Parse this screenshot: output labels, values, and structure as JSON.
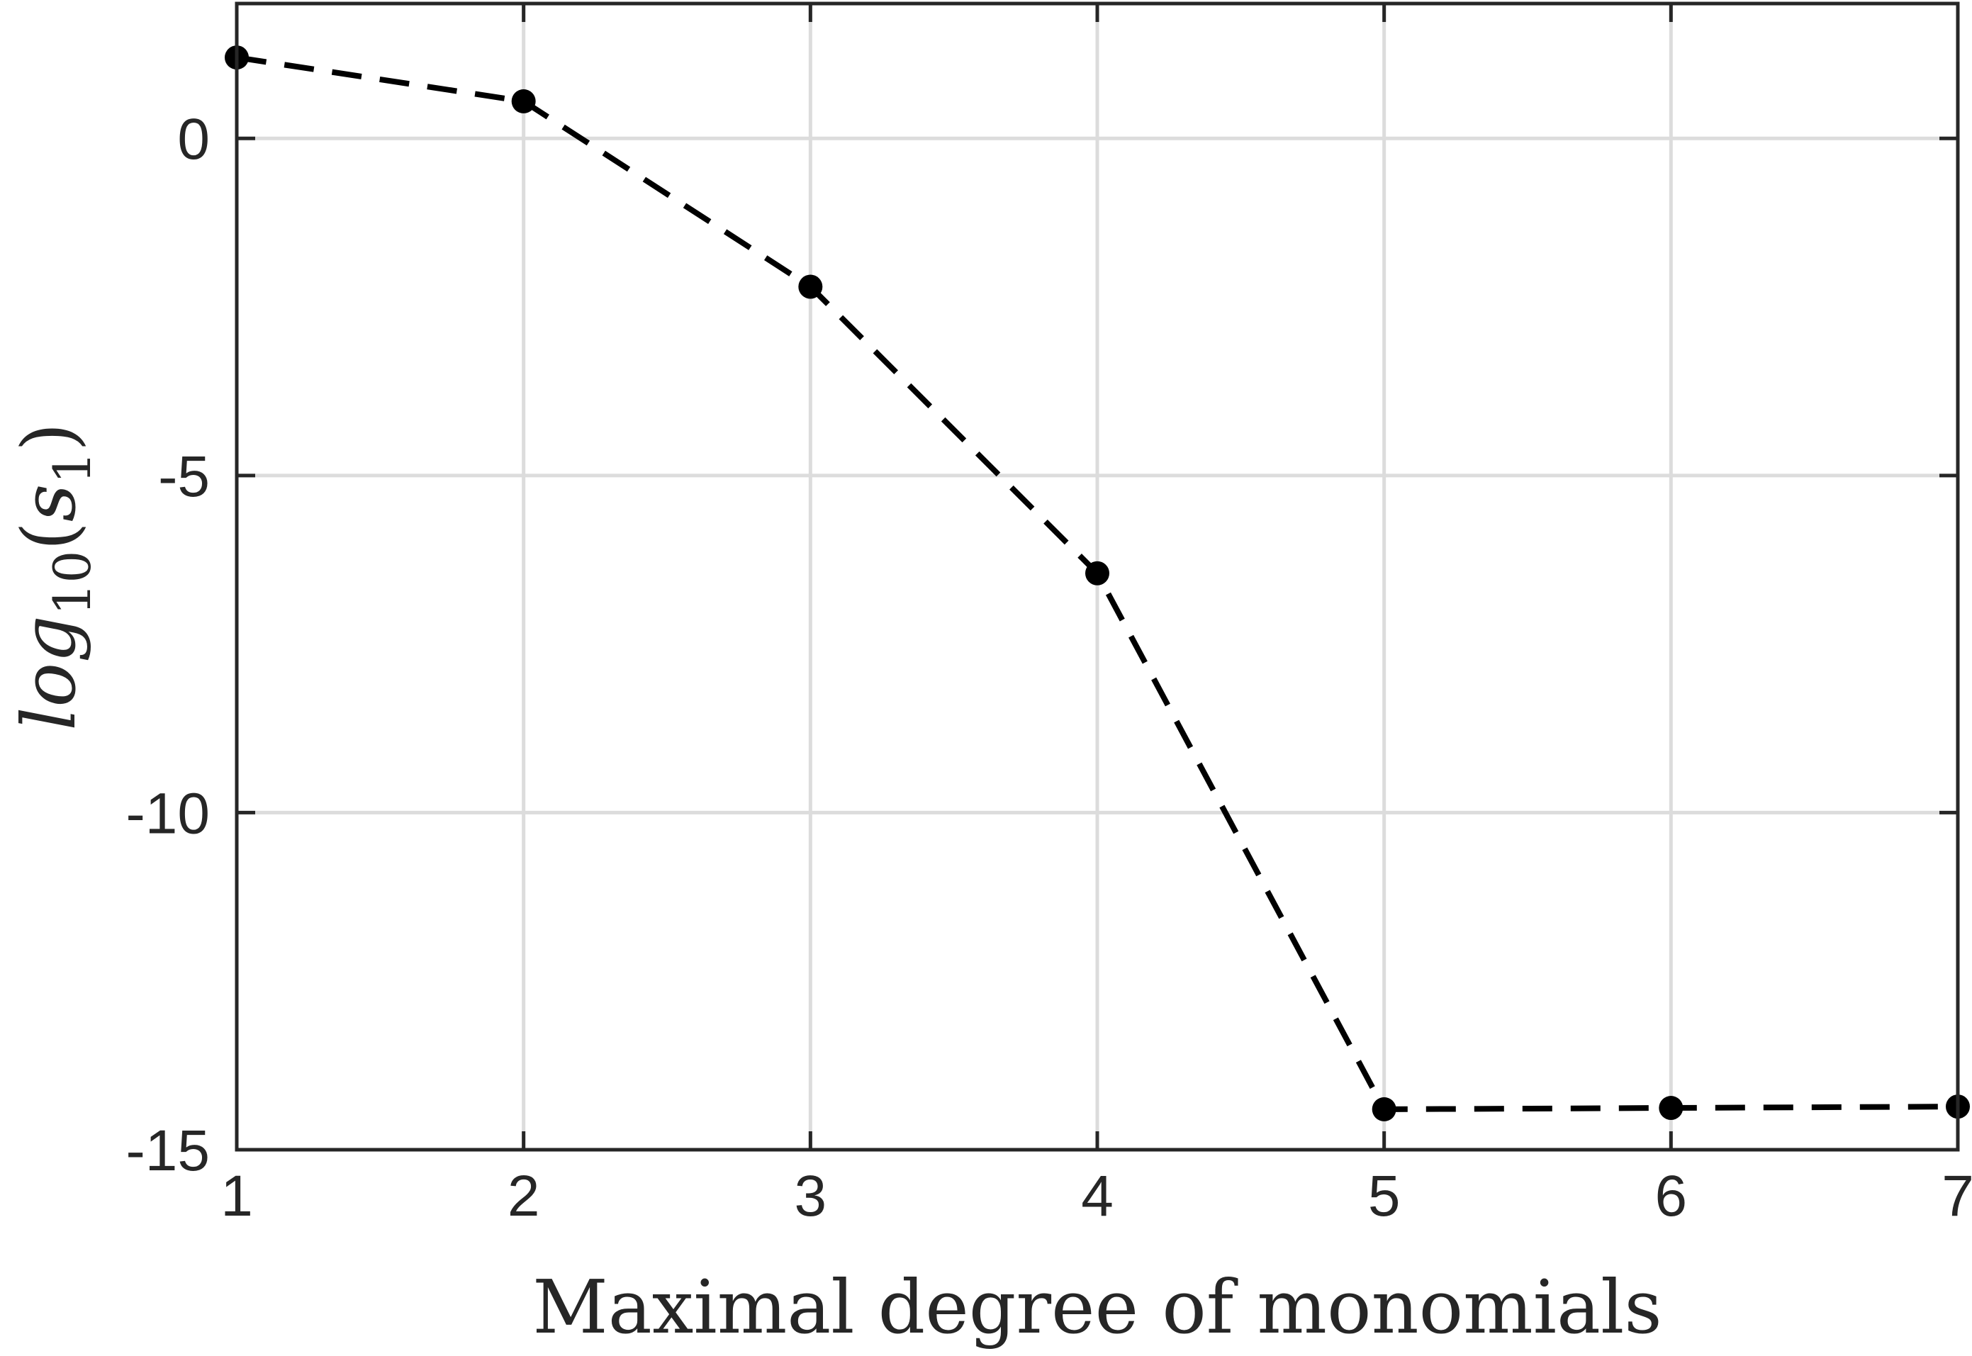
{
  "chart_data": {
    "type": "line",
    "title": "",
    "xlabel": "Maximal degree of monomials",
    "ylabel": {
      "base": "log",
      "base_subscript": "10",
      "open_paren": "(",
      "var": "s",
      "var_subscript": "1",
      "close_paren": ")"
    },
    "xlim": [
      1,
      7
    ],
    "ylim": [
      -15,
      2
    ],
    "xticks": [
      1,
      2,
      3,
      4,
      5,
      6,
      7
    ],
    "xtick_labels": [
      "1",
      "2",
      "3",
      "4",
      "5",
      "6",
      "7"
    ],
    "yticks": [
      -15,
      -10,
      -5,
      0
    ],
    "ytick_labels": [
      "-15",
      "-10",
      "-5",
      "0"
    ],
    "grid": true,
    "series": [
      {
        "x": [
          1,
          2,
          3,
          4,
          5,
          6,
          7
        ],
        "y": [
          1.2,
          0.55,
          -2.2,
          -6.45,
          -14.4,
          -14.38,
          -14.36
        ],
        "line_style": "dashed",
        "marker": "filled-circle",
        "color": "#000000"
      }
    ]
  }
}
